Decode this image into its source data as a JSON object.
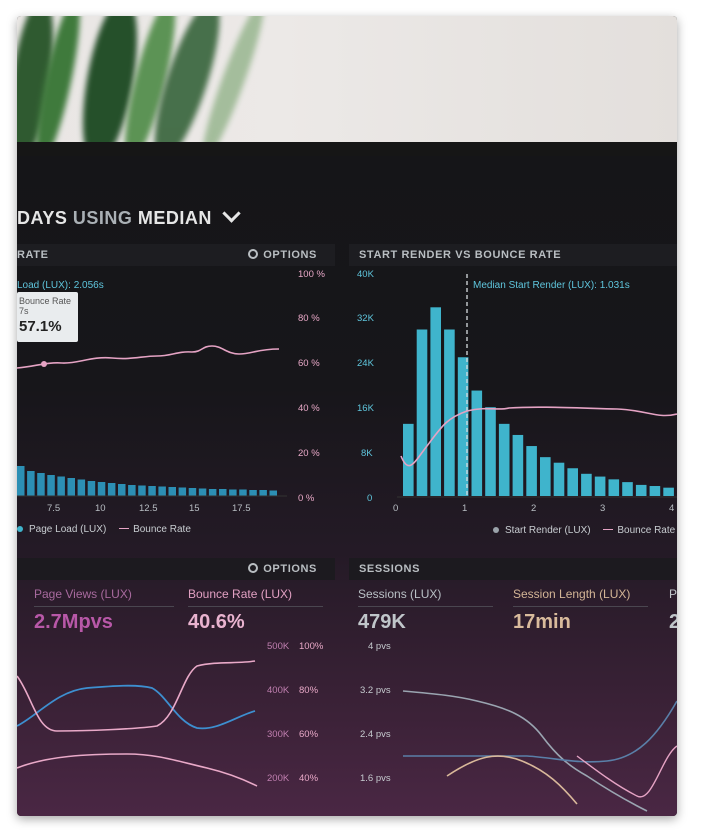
{
  "dashboard": {
    "title_prefix": "DAYS",
    "title_using": "USING",
    "title_median": "MEDIAN",
    "panel_left": {
      "header": "RATE",
      "options": "OPTIONS",
      "annotation": "Load (LUX): 2.056s",
      "tooltip_label": "Bounce Rate",
      "tooltip_sub": "7s",
      "tooltip_value": "57.1%",
      "y_right_ticks": [
        "100 %",
        "80 %",
        "60 %",
        "40 %",
        "20 %",
        "0 %"
      ],
      "x_ticks": [
        "7.5",
        "10",
        "12.5",
        "15",
        "17.5"
      ],
      "legend": [
        "Page Load (LUX)",
        "Bounce Rate"
      ]
    },
    "panel_right": {
      "header": "START RENDER VS BOUNCE RATE",
      "annotation": "Median Start Render (LUX): 1.031s",
      "y_left_ticks": [
        "40K",
        "32K",
        "24K",
        "16K",
        "8K",
        "0"
      ],
      "x_ticks": [
        "0",
        "1",
        "2",
        "3",
        "4"
      ],
      "legend": [
        "Start Render (LUX)",
        "Bounce Rate"
      ]
    },
    "panel_bottom_left": {
      "options": "OPTIONS",
      "metrics": [
        {
          "label": "Page Views (LUX)",
          "value": "2.7Mpvs"
        },
        {
          "label": "Bounce Rate (LUX)",
          "value": "40.6%"
        }
      ],
      "y_ticks_a": [
        "500K",
        "400K",
        "300K",
        "200K"
      ],
      "y_ticks_b": [
        "100%",
        "80%",
        "60%",
        "40%"
      ]
    },
    "panel_bottom_right": {
      "header": "SESSIONS",
      "metrics": [
        {
          "label": "Sessions (LUX)",
          "value": "479K"
        },
        {
          "label": "Session Length (LUX)",
          "value": "17min"
        },
        {
          "label": "P",
          "value": "2"
        }
      ],
      "y_ticks": [
        "4 pvs",
        "3.2 pvs",
        "2.4 pvs",
        "1.6 pvs"
      ]
    },
    "colors": {
      "cyan": "#3fb4cc",
      "pink": "#e5a3c4",
      "magenta": "#c9509b",
      "blue": "#3d8fd0",
      "tan": "#d9b89a"
    },
    "histogram_right": [
      13,
      30,
      34,
      30,
      25,
      19,
      16,
      13,
      11,
      9,
      7,
      6,
      5,
      4,
      3.5,
      3,
      2.5,
      2,
      1.8,
      1.5,
      1.2,
      1
    ],
    "histogram_left": [
      6,
      5,
      4.6,
      4.2,
      3.9,
      3.6,
      3.3,
      3.0,
      2.8,
      2.6,
      2.4,
      2.2,
      2.1,
      2.0,
      1.9,
      1.8,
      1.7,
      1.6,
      1.5,
      1.4,
      1.4,
      1.3,
      1.3,
      1.2,
      1.2,
      1.1
    ]
  }
}
